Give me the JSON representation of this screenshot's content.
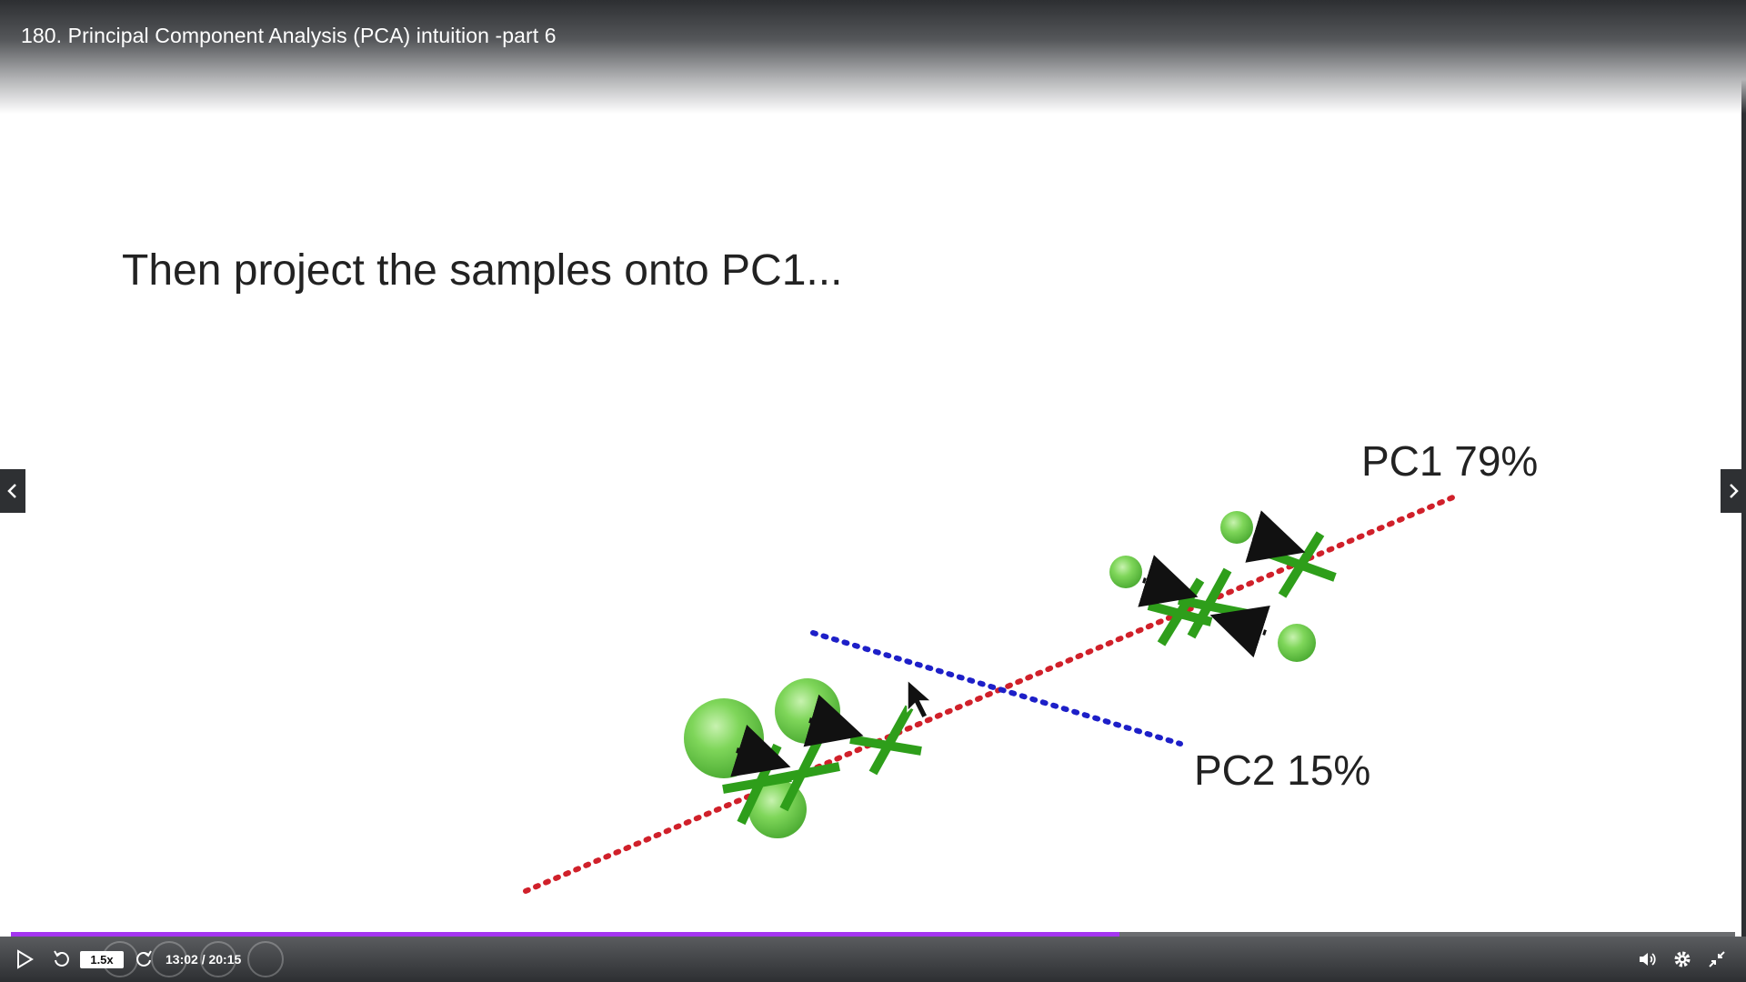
{
  "video": {
    "title": "180. Principal Component Analysis (PCA) intuition -part 6"
  },
  "slide": {
    "heading": "Then project the samples onto PC1...",
    "pc1_label": "PC1 79%",
    "pc2_label": "PC2 15%",
    "colors": {
      "pc1_line": "#d0202a",
      "pc2_line": "#1d1fc8",
      "sample": "#6ccf4a",
      "projection": "#2e9e1a",
      "arrow": "#111111"
    }
  },
  "player": {
    "speed": "1.5x",
    "time": "13:02 / 20:15",
    "progress": 0.643,
    "accent": "#a435f0",
    "icons": {
      "play": "play-icon",
      "rewind": "rewind-icon",
      "forward": "forward-icon",
      "volume": "volume-icon",
      "settings": "gear-icon",
      "exit_fullscreen": "exit-fullscreen-icon",
      "prev": "chevron-left-icon",
      "next": "chevron-right-icon"
    }
  }
}
